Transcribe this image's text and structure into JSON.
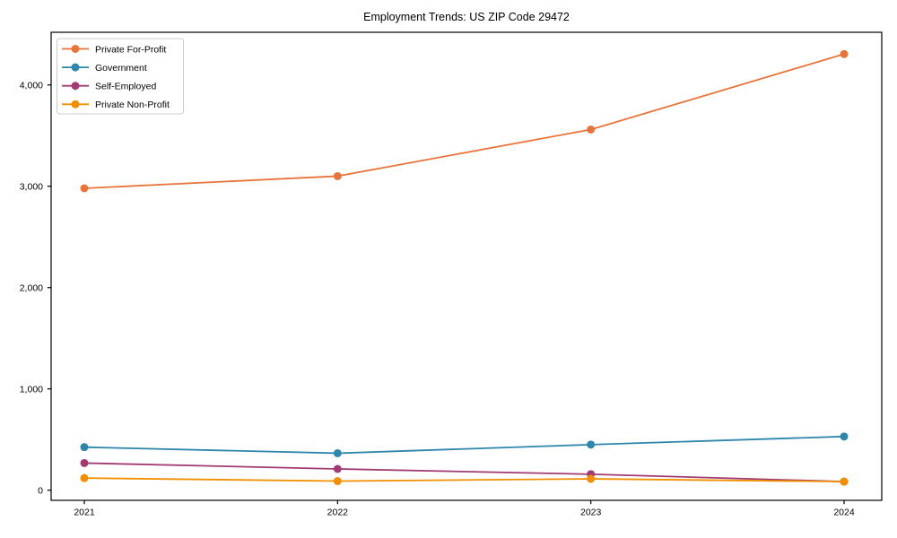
{
  "chart_data": {
    "type": "line",
    "title": "Employment Trends: US ZIP Code 29472",
    "x": [
      2021,
      2022,
      2023,
      2024
    ],
    "series": [
      {
        "name": "Private For-Profit",
        "color": "#e8743b",
        "values": [
          2980,
          3100,
          3560,
          4305
        ]
      },
      {
        "name": "Government",
        "color": "#2e86ab",
        "values": [
          425,
          365,
          450,
          530
        ]
      },
      {
        "name": "Self-Employed",
        "color": "#a23b72",
        "values": [
          268,
          210,
          158,
          85
        ]
      },
      {
        "name": "Private Non-Profit",
        "color": "#f18f01",
        "values": [
          120,
          90,
          112,
          85
        ]
      }
    ],
    "xlabel": "",
    "ylabel": "",
    "ylim": [
      -100,
      4520
    ],
    "yticks": [
      0,
      1000,
      2000,
      3000,
      4000
    ],
    "ytick_labels": [
      "0",
      "1,000",
      "2,000",
      "3,000",
      "4,000"
    ],
    "grid": false,
    "legend_position": "upper-left",
    "axis_color": "#000000",
    "legend_border_color": "#cccccc",
    "legend_background": "#ffffff"
  }
}
